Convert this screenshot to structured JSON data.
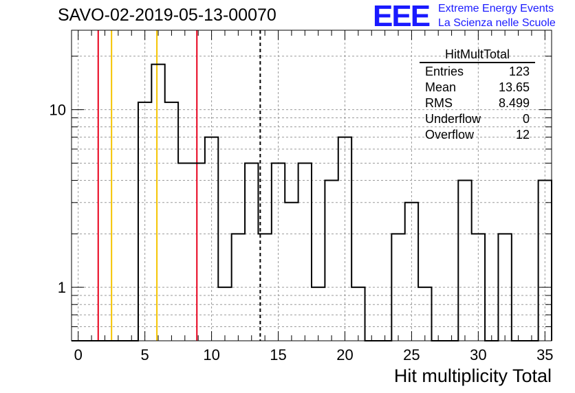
{
  "run_title": "SAVO-02-2019-05-13-00070",
  "logo": {
    "mark": "EEE",
    "line1": "Extreme Energy Events",
    "line2": "La Scienza nelle Scuole",
    "color": "#1a1aff"
  },
  "stats": {
    "title": "HitMultTotal",
    "rows": [
      {
        "key": "Entries",
        "value": "123"
      },
      {
        "key": "Mean",
        "value": "13.65"
      },
      {
        "key": "RMS",
        "value": "8.499"
      },
      {
        "key": "Underflow",
        "value": "0"
      },
      {
        "key": "Overflow",
        "value": "12"
      }
    ]
  },
  "chart_data": {
    "type": "bar",
    "style": "step-histogram",
    "xlabel": "Hit multiplicity Total",
    "ylabel": "",
    "xlim": [
      -0.5,
      35.5
    ],
    "ylim": [
      0.5,
      28
    ],
    "yscale": "log",
    "grid": true,
    "x_ticks": [
      0,
      5,
      10,
      15,
      20,
      25,
      30,
      35
    ],
    "y_ticks": [
      1,
      10
    ],
    "bins": {
      "low_edges": [
        -0.5,
        0.5,
        1.5,
        2.5,
        3.5,
        4.5,
        5.5,
        6.5,
        7.5,
        8.5,
        9.5,
        10.5,
        11.5,
        12.5,
        13.5,
        14.5,
        15.5,
        16.5,
        17.5,
        18.5,
        19.5,
        20.5,
        21.5,
        22.5,
        23.5,
        24.5,
        25.5,
        26.5,
        27.5,
        28.5,
        29.5,
        30.5,
        31.5,
        32.5,
        33.5,
        34.5
      ],
      "values": [
        0,
        0,
        0,
        0,
        0,
        11,
        18,
        11,
        5,
        5,
        7,
        1,
        2,
        5,
        2,
        5,
        3,
        5,
        1,
        4,
        7,
        1,
        0,
        0,
        2,
        3,
        1,
        0,
        0,
        4,
        2,
        0,
        2,
        0,
        0,
        4
      ]
    },
    "vertical_lines": [
      {
        "x": 1.5,
        "color": "#e8001c",
        "style": "solid"
      },
      {
        "x": 2.5,
        "color": "#f5c400",
        "style": "solid"
      },
      {
        "x": 5.9,
        "color": "#f5c400",
        "style": "solid"
      },
      {
        "x": 8.9,
        "color": "#e8001c",
        "style": "solid"
      },
      {
        "x": 13.65,
        "color": "#000000",
        "style": "dashed"
      }
    ]
  }
}
